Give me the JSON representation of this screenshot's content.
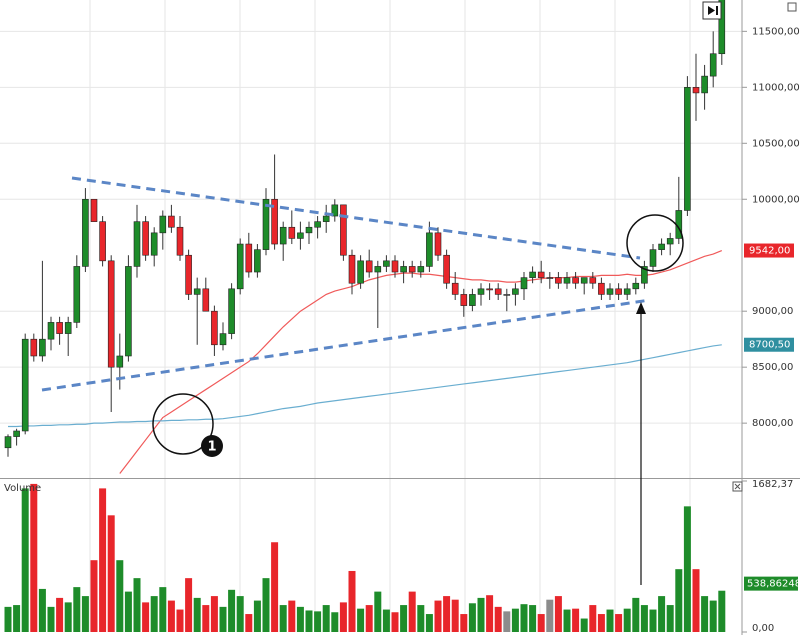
{
  "chart_data": [
    {
      "type": "candlestick",
      "open": [
        7780,
        7880,
        7930,
        8750,
        8600,
        8750,
        8900,
        8800,
        8900,
        9400,
        10000,
        9800,
        9450,
        8500,
        8600,
        9400,
        9800,
        9500,
        9700,
        9850,
        9750,
        9500,
        9150,
        9200,
        9000,
        8700,
        8800,
        9200,
        9600,
        9350,
        9550,
        10000,
        9600,
        9750,
        9650,
        9700,
        9750,
        9800,
        9850,
        9950,
        9500,
        9250,
        9450,
        9350,
        9400,
        9450,
        9350,
        9400,
        9350,
        9400,
        9700,
        9500,
        9250,
        9150,
        9050,
        9150,
        9200,
        9200,
        9150,
        9150,
        9200,
        9300,
        9350,
        9300,
        9300,
        9250,
        9300,
        9250,
        9300,
        9250,
        9150,
        9200,
        9150,
        9200,
        9250,
        9400,
        9550,
        9600,
        9650,
        9900,
        11000,
        10950,
        11100,
        11300
      ],
      "high": [
        7900,
        7950,
        8800,
        8800,
        9450,
        8950,
        8950,
        8950,
        9500,
        10100,
        10000,
        9850,
        9500,
        8800,
        9500,
        9950,
        9850,
        9750,
        9900,
        9950,
        9850,
        9550,
        9300,
        9300,
        9050,
        8900,
        9250,
        9650,
        9700,
        9600,
        10100,
        10400,
        9800,
        9900,
        9800,
        9800,
        9850,
        9950,
        10000,
        9950,
        9550,
        9500,
        9550,
        9450,
        9500,
        9500,
        9450,
        9450,
        9450,
        9800,
        9750,
        9550,
        9350,
        9200,
        9200,
        9250,
        9250,
        9250,
        9200,
        9250,
        9350,
        9400,
        9450,
        9350,
        9350,
        9350,
        9350,
        9300,
        9350,
        9300,
        9250,
        9250,
        9250,
        9300,
        9450,
        9600,
        9650,
        9700,
        10200,
        11100,
        11300,
        11200,
        11500,
        11900
      ],
      "low": [
        7700,
        7800,
        7900,
        8550,
        8550,
        8650,
        8700,
        8600,
        8850,
        9350,
        9800,
        9400,
        8100,
        8300,
        8550,
        9300,
        9450,
        9400,
        9550,
        9700,
        9450,
        9100,
        8700,
        9000,
        8600,
        8650,
        8750,
        9150,
        9300,
        9300,
        9500,
        9550,
        9450,
        9600,
        9550,
        9600,
        9650,
        9700,
        9800,
        9450,
        9150,
        9200,
        9300,
        8850,
        9350,
        9300,
        9250,
        9300,
        9300,
        9350,
        9450,
        9200,
        9100,
        8950,
        9000,
        9050,
        9100,
        9100,
        9000,
        9050,
        9100,
        9250,
        9250,
        9200,
        9200,
        9200,
        9200,
        9150,
        9200,
        9100,
        9100,
        9100,
        9100,
        9150,
        9200,
        9350,
        9500,
        9500,
        9600,
        9850,
        10700,
        10800,
        11000,
        11200
      ],
      "close": [
        7880,
        7930,
        8750,
        8600,
        8750,
        8900,
        8800,
        8900,
        9400,
        10000,
        9800,
        9450,
        8500,
        8600,
        9400,
        9800,
        9500,
        9700,
        9850,
        9750,
        9500,
        9150,
        9200,
        9000,
        8700,
        8800,
        9200,
        9600,
        9350,
        9550,
        10000,
        9600,
        9750,
        9650,
        9700,
        9750,
        9800,
        9850,
        9950,
        9500,
        9250,
        9450,
        9350,
        9400,
        9450,
        9350,
        9400,
        9350,
        9400,
        9700,
        9500,
        9250,
        9150,
        9050,
        9150,
        9200,
        9190,
        9150,
        9150,
        9200,
        9300,
        9350,
        9300,
        9300,
        9250,
        9300,
        9250,
        9300,
        9250,
        9150,
        9200,
        9150,
        9200,
        9250,
        9400,
        9550,
        9600,
        9650,
        9900,
        11000,
        10950,
        11100,
        11300,
        11800
      ],
      "up_color": "#1e8c2a",
      "down_color": "#e8262b",
      "flat_color": "#8c8c8c",
      "ylim": [
        7510,
        11780
      ],
      "yticks": [
        {
          "value": 8000,
          "label": "8000,00"
        },
        {
          "value": 8500,
          "label": "8500,00"
        },
        {
          "value": 9000,
          "label": "9000,00"
        },
        {
          "value": 10000,
          "label": "10000,00"
        },
        {
          "value": 10500,
          "label": "10500,00"
        },
        {
          "value": 11000,
          "label": "11000,00"
        },
        {
          "value": 11500,
          "label": "11500,00"
        }
      ],
      "grid": true,
      "lines": [
        {
          "color": "#f05a5a",
          "values": [
            null,
            null,
            null,
            null,
            null,
            null,
            null,
            null,
            null,
            null,
            null,
            null,
            null,
            7550,
            7650,
            7750,
            7850,
            7950,
            8050,
            8100,
            8150,
            8200,
            8250,
            8300,
            8350,
            8400,
            8450,
            8500,
            8550,
            8620,
            8700,
            8780,
            8860,
            8930,
            9000,
            9050,
            9100,
            9150,
            9180,
            9200,
            9220,
            9250,
            9280,
            9300,
            9320,
            9330,
            9340,
            9340,
            9330,
            9330,
            9320,
            9310,
            9300,
            9290,
            9280,
            9280,
            9270,
            9270,
            9260,
            9260,
            9270,
            9280,
            9290,
            9300,
            9300,
            9300,
            9310,
            9310,
            9310,
            9320,
            9320,
            9320,
            9330,
            9320,
            9320,
            9330,
            9350,
            9370,
            9400,
            9430,
            9460,
            9490,
            9510,
            9542
          ]
        },
        {
          "color": "#6aaed0",
          "values": [
            7970,
            7970,
            7975,
            7975,
            7980,
            7980,
            7985,
            7985,
            7990,
            7990,
            8000,
            8000,
            8005,
            8010,
            8010,
            8015,
            8015,
            8020,
            8020,
            8025,
            8025,
            8030,
            8030,
            8035,
            8035,
            8040,
            8050,
            8060,
            8070,
            8085,
            8100,
            8115,
            8130,
            8140,
            8150,
            8165,
            8180,
            8190,
            8200,
            8210,
            8220,
            8230,
            8240,
            8250,
            8260,
            8270,
            8280,
            8290,
            8300,
            8310,
            8320,
            8330,
            8340,
            8350,
            8360,
            8370,
            8380,
            8390,
            8400,
            8410,
            8420,
            8430,
            8440,
            8450,
            8460,
            8470,
            8480,
            8490,
            8500,
            8510,
            8520,
            8530,
            8540,
            8555,
            8570,
            8585,
            8600,
            8615,
            8630,
            8645,
            8660,
            8675,
            8690,
            8700
          ]
        }
      ],
      "price_labels": [
        {
          "value": 9542,
          "label": "9542,00",
          "color": "#e8262b"
        },
        {
          "value": 8700.5,
          "label": "8700,50",
          "color": "#2f8fa0"
        }
      ],
      "marker_label": "1"
    },
    {
      "type": "volume",
      "title": "Volume",
      "values": [
        280,
        300,
        1600,
        1650,
        480,
        280,
        380,
        330,
        500,
        400,
        800,
        1600,
        1300,
        800,
        450,
        600,
        330,
        400,
        500,
        350,
        250,
        600,
        380,
        300,
        400,
        280,
        470,
        400,
        200,
        350,
        600,
        1000,
        300,
        350,
        280,
        240,
        230,
        300,
        220,
        330,
        680,
        260,
        300,
        450,
        250,
        220,
        300,
        450,
        300,
        200,
        350,
        400,
        360,
        200,
        320,
        380,
        410,
        280,
        230,
        260,
        310,
        300,
        200,
        360,
        400,
        250,
        260,
        150,
        300,
        200,
        250,
        200,
        260,
        380,
        300,
        250,
        400,
        300,
        700,
        1400,
        700,
        400,
        350,
        460
      ],
      "ylim": [
        0,
        1682.37
      ],
      "yticks": [
        {
          "value": 1682.37,
          "label": "1682,37"
        },
        {
          "value": 0,
          "label": "0,00"
        }
      ],
      "value_label": {
        "value": 538.86248,
        "label": "538,86248",
        "color": "#1e8c2a"
      }
    }
  ]
}
